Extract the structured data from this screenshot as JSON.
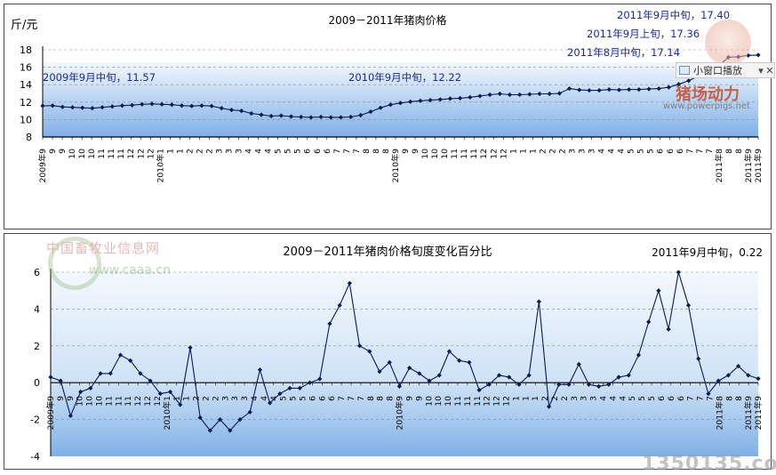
{
  "charts": [
    {
      "title": "2009－2011年猪肉价格",
      "ylabel": "斤/元",
      "y_ticks": [
        "8",
        "10",
        "12",
        "14",
        "16",
        "18"
      ],
      "x_ticks": [
        "2009年9",
        "9",
        "9",
        "10",
        "10",
        "10",
        "11",
        "11",
        "11",
        "12",
        "12",
        "12",
        "2010年1",
        "1",
        "1",
        "2",
        "2",
        "2",
        "3",
        "3",
        "3",
        "4",
        "4",
        "4",
        "5",
        "5",
        "5",
        "6",
        "6",
        "6",
        "7",
        "7",
        "7",
        "8",
        "8",
        "8",
        "2010年9",
        "9",
        "9",
        "10",
        "10",
        "10",
        "11",
        "11",
        "11",
        "12",
        "12",
        "12",
        "1",
        "1",
        "1",
        "2",
        "2",
        "2",
        "3",
        "3",
        "3",
        "4",
        "4",
        "4",
        "5",
        "5",
        "5",
        "6",
        "6",
        "6",
        "7",
        "7",
        "7",
        "2011年8",
        "8",
        "8",
        "2011年9",
        "2011年9"
      ],
      "annotations": [
        {
          "text": "2009年9月中旬，11.57"
        },
        {
          "text": "2010年9月中旬，12.22"
        },
        {
          "text": "2011年8月中旬，17.14"
        },
        {
          "text": "2011年9月上旬，17.36"
        },
        {
          "text": "2011年9月中旬，17.40"
        }
      ]
    },
    {
      "title": "2009－2011年猪肉价格旬度变化百分比",
      "corner_label": "2011年9月中旬，0.22",
      "y_ticks": [
        "-4",
        "-2",
        "0",
        "2",
        "4",
        "6"
      ],
      "x_ticks": [
        "2009年9",
        "9",
        "9",
        "10",
        "10",
        "10",
        "11",
        "11",
        "11",
        "12",
        "12",
        "12",
        "2010年1",
        "1",
        "1",
        "2",
        "2",
        "2",
        "3",
        "3",
        "3",
        "4",
        "4",
        "4",
        "5",
        "5",
        "5",
        "6",
        "6",
        "6",
        "7",
        "7",
        "7",
        "8",
        "8",
        "8",
        "2010年9",
        "9",
        "9",
        "10",
        "10",
        "10",
        "11",
        "11",
        "11",
        "12",
        "12",
        "12",
        "1",
        "1",
        "1",
        "2",
        "2",
        "2",
        "3",
        "3",
        "3",
        "4",
        "4",
        "4",
        "5",
        "5",
        "5",
        "6",
        "6",
        "6",
        "7",
        "7",
        "7",
        "2011年8",
        "8",
        "8",
        "2011年9",
        "2011年9"
      ]
    }
  ],
  "chart_data": [
    {
      "type": "line",
      "title": "2009－2011年猪肉价格",
      "ylabel": "斤/元",
      "ylim": [
        8,
        18
      ],
      "grid": true,
      "series": [
        {
          "values": [
            11.57,
            11.6,
            11.45,
            11.4,
            11.35,
            11.3,
            11.4,
            11.5,
            11.6,
            11.65,
            11.75,
            11.8,
            11.75,
            11.7,
            11.6,
            11.55,
            11.6,
            11.55,
            11.3,
            11.1,
            11.0,
            10.7,
            10.55,
            10.4,
            10.45,
            10.35,
            10.3,
            10.25,
            10.3,
            10.25,
            10.25,
            10.3,
            10.5,
            10.9,
            11.35,
            11.7,
            11.9,
            12.05,
            12.15,
            12.22,
            12.3,
            12.4,
            12.45,
            12.55,
            12.7,
            12.85,
            12.95,
            12.85,
            12.85,
            12.9,
            12.95,
            12.95,
            13.0,
            13.55,
            13.4,
            13.35,
            13.35,
            13.45,
            13.4,
            13.45,
            13.45,
            13.5,
            13.55,
            13.7,
            14.05,
            14.45,
            15.0,
            15.4,
            16.15,
            17.14,
            17.2,
            17.36,
            17.4
          ]
        }
      ]
    },
    {
      "type": "line",
      "title": "2009－2011年猪肉价格旬度变化百分比",
      "ylim": [
        -4,
        6
      ],
      "grid": true,
      "series": [
        {
          "values": [
            0.3,
            0.1,
            -1.8,
            -0.5,
            -0.3,
            0.5,
            0.5,
            1.5,
            1.2,
            0.5,
            0.1,
            -0.6,
            -0.5,
            -1.2,
            1.9,
            -1.9,
            -2.6,
            -2.0,
            -2.6,
            -2.0,
            -1.6,
            0.7,
            -1.1,
            -0.6,
            -0.3,
            -0.3,
            0.0,
            0.2,
            3.2,
            4.2,
            5.4,
            2.0,
            1.7,
            0.6,
            1.1,
            -0.2,
            0.8,
            0.5,
            0.1,
            0.4,
            1.7,
            1.2,
            1.1,
            -0.4,
            -0.1,
            0.4,
            0.3,
            -0.1,
            0.4,
            4.4,
            -1.3,
            -0.1,
            -0.1,
            1.0,
            -0.1,
            -0.2,
            -0.1,
            0.3,
            0.4,
            1.5,
            3.3,
            5.0,
            2.9,
            6.0,
            4.2,
            1.3,
            -0.6,
            0.1,
            0.4,
            0.9,
            0.4,
            0.22
          ]
        }
      ]
    }
  ],
  "colors": {
    "line": "#0a1a52",
    "annotation": "#1a2aa0",
    "axis_text": "#000000",
    "band_dark": "#7fb0e6",
    "band_light": "#eef5fc",
    "grid": "#7c8aa0"
  },
  "overlay": {
    "popup_label": "小窗口播放",
    "popup_arrow": "▾",
    "popup_close": "✕"
  },
  "watermarks": {
    "pig_site": "猪场动力",
    "pig_url": "www.powerpigs.net",
    "caaa_text": "中国畜牧业信息网",
    "caaa_url": "www.caaa.cn",
    "bottom": "1350135.com"
  }
}
